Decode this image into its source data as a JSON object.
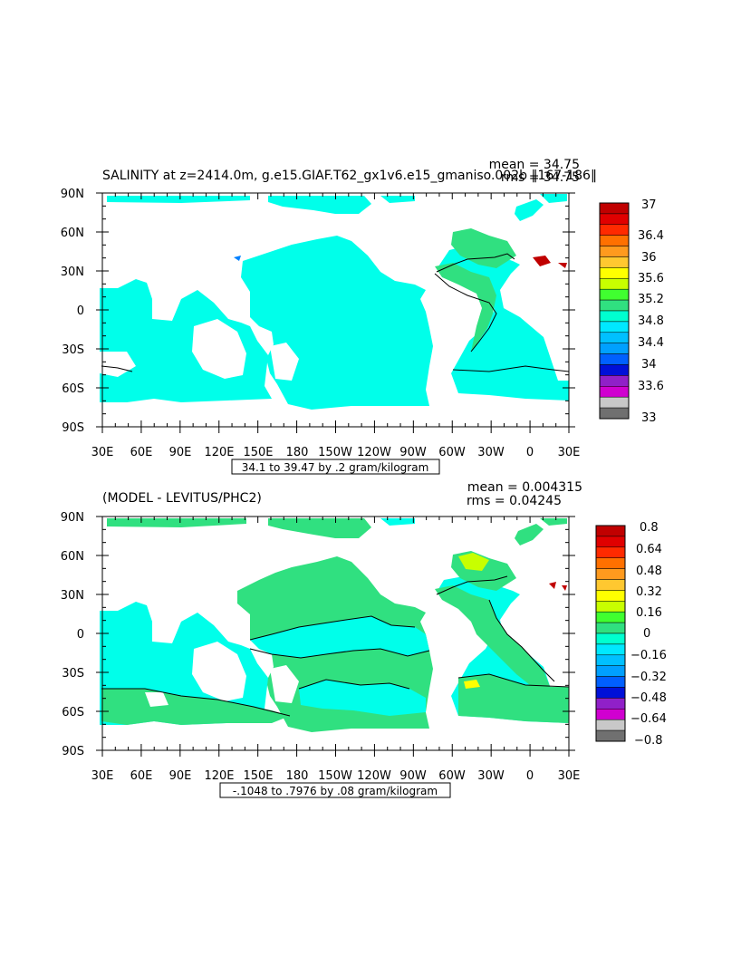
{
  "panels": [
    {
      "id": "top",
      "title": "SALINITY at z=2414.0m, g.e15.GIAF.T62_gx1v6.e15_gmaniso.002b ‖167-186‖",
      "stats": {
        "mean": "mean = 34.75",
        "rms": "rms = 34.75"
      },
      "x_ticks": [
        "30E",
        "60E",
        "90E",
        "120E",
        "150E",
        "180",
        "150W",
        "120W",
        "90W",
        "60W",
        "30W",
        "0",
        "30E"
      ],
      "y_ticks": [
        "90N",
        "60N",
        "30N",
        "0",
        "30S",
        "60S",
        "90S"
      ],
      "range_box": "34.1 to 39.47 by .2 gram/kilogram",
      "colorbar": {
        "labels": [
          "37",
          "36.4",
          "36",
          "35.6",
          "35.2",
          "34.8",
          "34.4",
          "34",
          "33.6",
          "33"
        ],
        "colors": [
          "#c00000",
          "#e00000",
          "#ff2a00",
          "#ff7000",
          "#ff9a1e",
          "#ffc830",
          "#ffff00",
          "#c8ff00",
          "#40ff30",
          "#30e080",
          "#00ffd0",
          "#00e8ff",
          "#00c0ff",
          "#00a0ff",
          "#0060ff",
          "#0010d8",
          "#9020c8",
          "#d000d0",
          "#c8c8c8",
          "#707070"
        ]
      }
    },
    {
      "id": "bottom",
      "title": "(MODEL - LEVITUS/PHC2)",
      "stats": {
        "mean": "mean = 0.004315",
        "rms": "rms = 0.04245"
      },
      "x_ticks": [
        "30E",
        "60E",
        "90E",
        "120E",
        "150E",
        "180",
        "150W",
        "120W",
        "90W",
        "60W",
        "30W",
        "0",
        "30E"
      ],
      "y_ticks": [
        "90N",
        "60N",
        "30N",
        "0",
        "30S",
        "60S",
        "90S"
      ],
      "range_box": "-.1048 to .7976 by .08 gram/kilogram",
      "colorbar": {
        "labels": [
          "0.8",
          "0.64",
          "0.48",
          "0.32",
          "0.16",
          "0",
          "−0.16",
          "−0.32",
          "−0.48",
          "−0.64",
          "−0.8"
        ],
        "colors": [
          "#c00000",
          "#e00000",
          "#ff2a00",
          "#ff7000",
          "#ff9a1e",
          "#ffc830",
          "#ffff00",
          "#c8ff00",
          "#40ff30",
          "#30e080",
          "#00ffd0",
          "#00e8ff",
          "#00c0ff",
          "#00a0ff",
          "#0060ff",
          "#0010d8",
          "#9020c8",
          "#d000d0",
          "#c8c8c8",
          "#707070"
        ]
      }
    }
  ]
}
